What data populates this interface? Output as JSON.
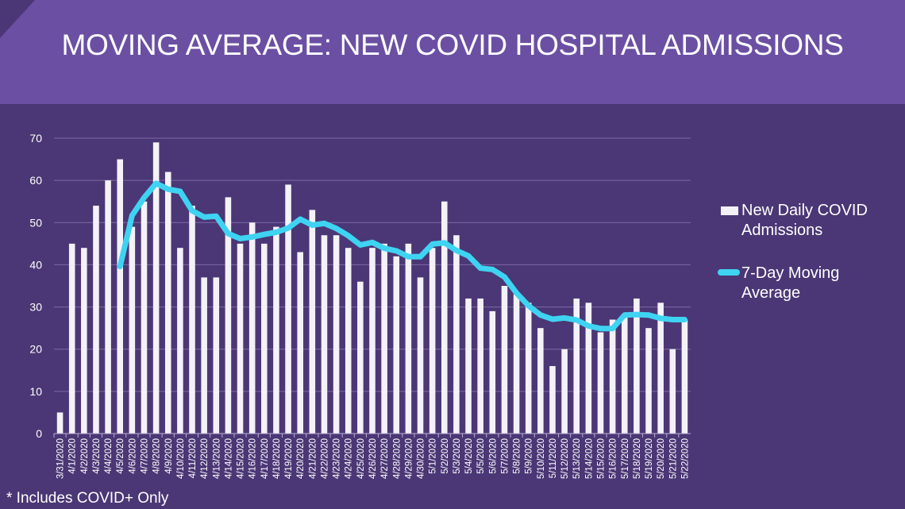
{
  "title": "MOVING AVERAGE: NEW COVID HOSPITAL ADMISSIONS",
  "footnote": "* Includes COVID+ Only",
  "colors": {
    "background": "#4b3775",
    "header": "#6b4fa3",
    "bar": "#f4f1f8",
    "line": "#3fd3f2",
    "grid": "#7e6aa6"
  },
  "chart_data": {
    "type": "bar",
    "title": "MOVING AVERAGE: NEW COVID HOSPITAL ADMISSIONS",
    "xlabel": "",
    "ylabel": "",
    "ylim": [
      0,
      70
    ],
    "yticks": [
      0,
      10,
      20,
      30,
      40,
      50,
      60,
      70
    ],
    "grid": true,
    "legend_position": "right",
    "categories": [
      "3/31/2020",
      "4/1/2020",
      "4/2/2020",
      "4/3/2020",
      "4/4/2020",
      "4/5/2020",
      "4/6/2020",
      "4/7/2020",
      "4/8/2020",
      "4/9/2020",
      "4/10/2020",
      "4/11/2020",
      "4/12/2020",
      "4/13/2020",
      "4/14/2020",
      "4/15/2020",
      "4/16/2020",
      "4/17/2020",
      "4/18/2020",
      "4/19/2020",
      "4/20/2020",
      "4/21/2020",
      "4/22/2020",
      "4/23/2020",
      "4/24/2020",
      "4/25/2020",
      "4/26/2020",
      "4/27/2020",
      "4/28/2020",
      "4/29/2020",
      "4/30/2020",
      "5/1/2020",
      "5/2/2020",
      "5/3/2020",
      "5/4/2020",
      "5/5/2020",
      "5/6/2020",
      "5/7/2020",
      "5/8/2020",
      "5/9/2020",
      "5/10/2020",
      "5/11/2020",
      "5/12/2020",
      "5/13/2020",
      "5/14/2020",
      "5/15/2020",
      "5/16/2020",
      "5/17/2020",
      "5/18/2020",
      "5/19/2020",
      "5/20/2020",
      "5/21/2020",
      "5/22/2020"
    ],
    "series": [
      {
        "name": "New Daily COVID Admissions",
        "type": "bar",
        "values": [
          5,
          45,
          44,
          54,
          60,
          65,
          49,
          55,
          69,
          62,
          44,
          54,
          37,
          37,
          56,
          45,
          50,
          45,
          49,
          59,
          43,
          53,
          47,
          47,
          44,
          36,
          44,
          45,
          42,
          45,
          37,
          44,
          55,
          47,
          32,
          32,
          29,
          35,
          33,
          31,
          25,
          16,
          20,
          32,
          31,
          24,
          27,
          28,
          32,
          25,
          31,
          20,
          27
        ]
      },
      {
        "name": "7-Day Moving Average",
        "type": "line",
        "values": [
          null,
          null,
          null,
          null,
          null,
          39.6,
          51.7,
          55.9,
          59.3,
          57.9,
          57.4,
          52.8,
          51.3,
          51.5,
          47.4,
          46.2,
          46.6,
          47.2,
          47.7,
          48.7,
          50.8,
          49.4,
          49.8,
          48.6,
          46.9,
          44.7,
          45.3,
          43.9,
          43.3,
          41.9,
          41.9,
          44.9,
          45.2,
          43.4,
          42.1,
          39.2,
          38.9,
          37.1,
          33.3,
          30.3,
          28.1,
          27.1,
          27.4,
          26.9,
          25.5,
          24.9,
          24.9,
          28.1,
          28.2,
          28.1,
          27.3,
          27.0,
          27.0
        ]
      }
    ]
  }
}
